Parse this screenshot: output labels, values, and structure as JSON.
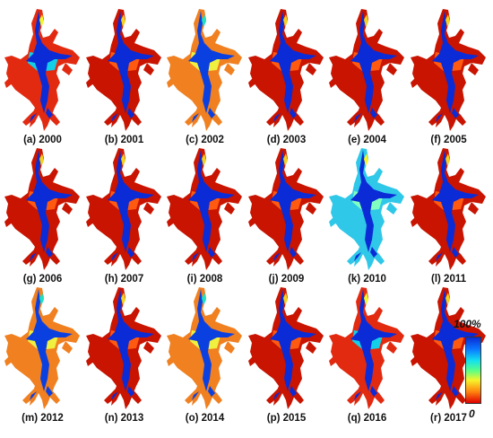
{
  "panels": [
    {
      "label": "(a) 2000",
      "palette": "mixed"
    },
    {
      "label": "(b) 2001",
      "palette": "red"
    },
    {
      "label": "(c) 2002",
      "palette": "mixed-yellow"
    },
    {
      "label": "(d) 2003",
      "palette": "red"
    },
    {
      "label": "(e) 2004",
      "palette": "red"
    },
    {
      "label": "(f) 2005",
      "palette": "red"
    },
    {
      "label": "(g) 2006",
      "palette": "red"
    },
    {
      "label": "(h) 2007",
      "palette": "red"
    },
    {
      "label": "(i) 2008",
      "palette": "red"
    },
    {
      "label": "(j) 2009",
      "palette": "red"
    },
    {
      "label": "(k) 2010",
      "palette": "cyan"
    },
    {
      "label": "(l) 2011",
      "palette": "red"
    },
    {
      "label": "(m) 2012",
      "palette": "mixed-yellow"
    },
    {
      "label": "(n) 2013",
      "palette": "red"
    },
    {
      "label": "(o) 2014",
      "palette": "mixed-yellow"
    },
    {
      "label": "(p) 2015",
      "palette": "red"
    },
    {
      "label": "(q) 2016",
      "palette": "mixed"
    },
    {
      "label": "(r) 2017",
      "palette": "red"
    }
  ],
  "colorbar": {
    "max_label": "100%",
    "min_label": "0",
    "colors": [
      "#0b2bd6",
      "#0a78ff",
      "#13e0f0",
      "#55ff8a",
      "#f5f52a",
      "#ff8a10",
      "#e00000"
    ]
  }
}
